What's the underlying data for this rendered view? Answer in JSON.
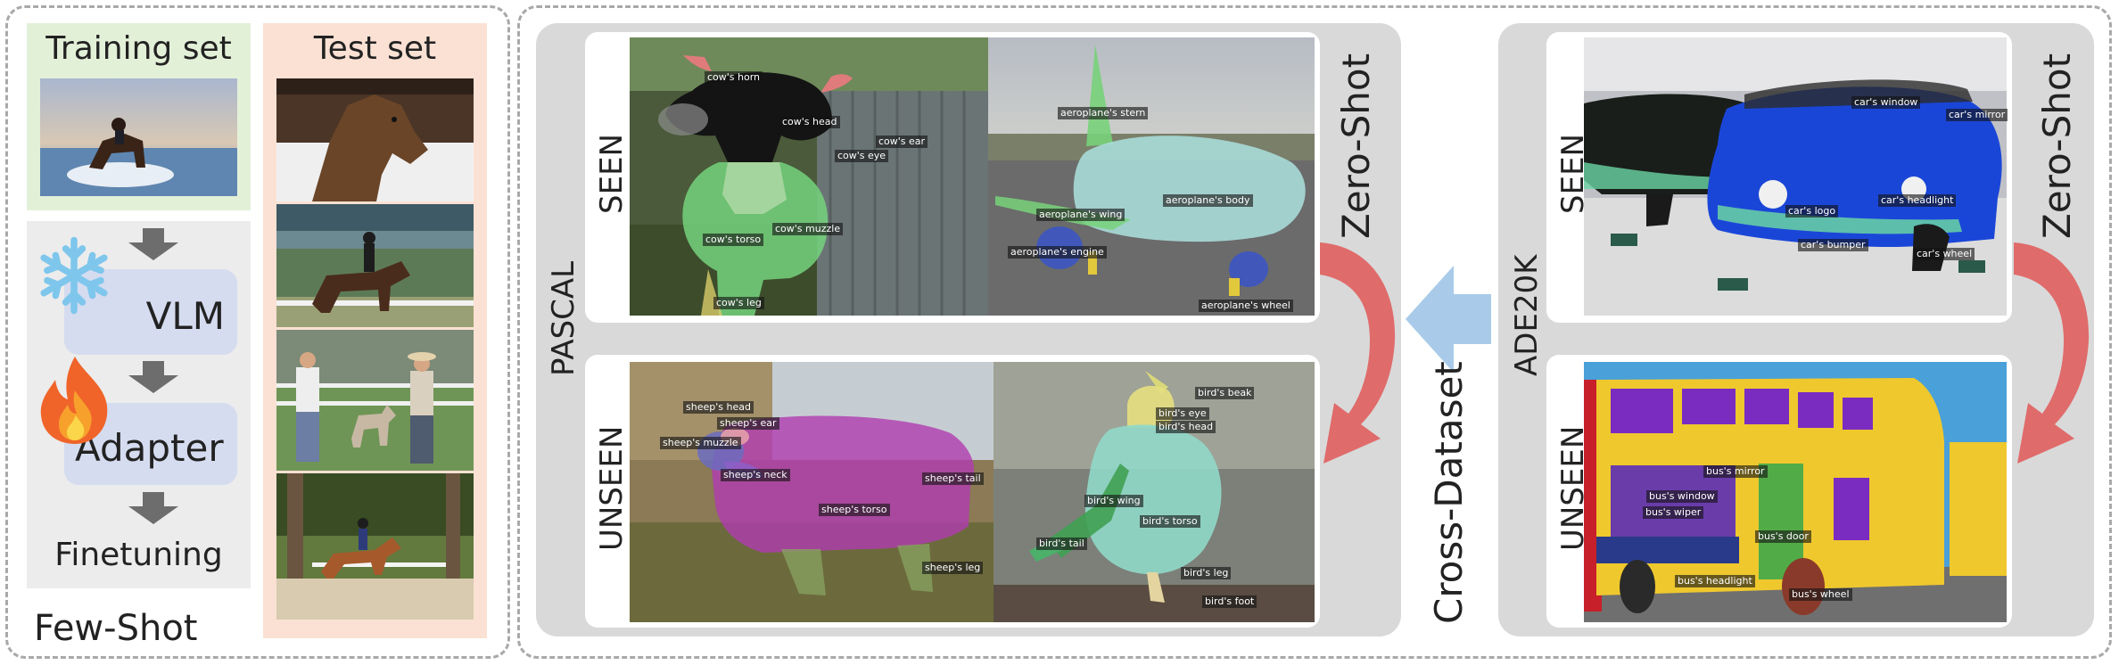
{
  "few_shot": {
    "caption": "Few-Shot",
    "training_title": "Training set",
    "test_title": "Test set",
    "vlm_label": "VLM",
    "adapter_label": "Adapter",
    "finetuning_label": "Finetuning",
    "colors": {
      "training_bg": "#e3f0d8",
      "test_bg": "#fbe1d3",
      "pipeline_bg": "#ececec",
      "block_bg": "#d5dcf0",
      "arrow": "#6d6d6d"
    },
    "icons": [
      "snowflake-icon",
      "fire-icon"
    ]
  },
  "pascal": {
    "dataset_label": "PASCAL",
    "seen_label": "SEEN",
    "unseen_label": "UNSEEN",
    "zero_shot_label": "Zero-Shot",
    "seen_images": [
      {
        "subject": "cow",
        "parts": [
          "cow's horn",
          "cow's head",
          "cow's ear",
          "cow's eye",
          "cow's muzzle",
          "cow's torso",
          "cow's leg"
        ]
      },
      {
        "subject": "aeroplane",
        "parts": [
          "aeroplane's stern",
          "aeroplane's body",
          "aeroplane's wing",
          "aeroplane's engine",
          "aeroplane's wheel"
        ]
      }
    ],
    "unseen_images": [
      {
        "subject": "sheep",
        "parts": [
          "sheep's head",
          "sheep's ear",
          "sheep's muzzle",
          "sheep's neck",
          "sheep's tail",
          "sheep's torso",
          "sheep's leg"
        ]
      },
      {
        "subject": "bird",
        "parts": [
          "bird's beak",
          "bird's eye",
          "bird's head",
          "bird's wing",
          "bird's torso",
          "bird's tail",
          "bird's leg",
          "bird's foot"
        ]
      }
    ]
  },
  "cross_dataset_label": "Cross-Dataset",
  "ade20k": {
    "dataset_label": "ADE20K",
    "seen_label": "SEEN",
    "unseen_label": "UNSEEN",
    "zero_shot_label": "Zero-Shot",
    "seen_image": {
      "subject": "car",
      "parts": [
        "car's window",
        "car's mirror",
        "car's logo",
        "car's headlight",
        "car's bumper",
        "car's wheel"
      ]
    },
    "unseen_image": {
      "subject": "bus",
      "parts": [
        "bus's mirror",
        "bus's window",
        "bus's wiper",
        "bus's door",
        "bus's headlight",
        "bus's wheel"
      ]
    }
  },
  "colors": {
    "panel_bg": "#d9d9d9",
    "zero_shot_arrow": "#e06b6b",
    "cross_arrow": "#a9cbe9"
  }
}
